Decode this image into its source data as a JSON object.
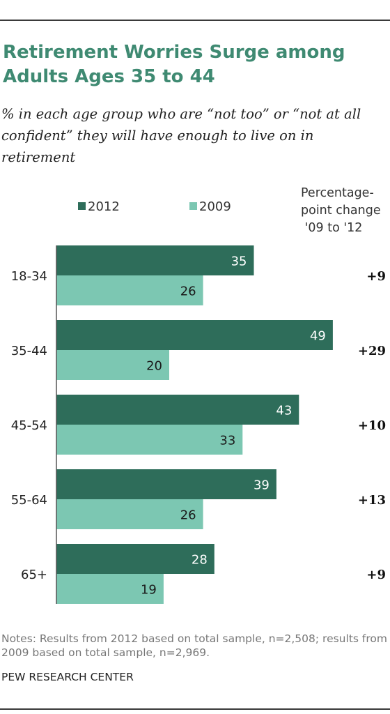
{
  "header": {
    "title": "Retirement Worries Surge among Adults Ages 35 to 44",
    "subtitle": "% in each age group  who are “not too” or “not at all confident” they will have enough to live on in retirement"
  },
  "legend": {
    "label_2012": "2012",
    "label_2009": "2009"
  },
  "change_header": "Percentage-\npoint change\n '09 to '12",
  "colors": {
    "bar_2012": "#2e6d5a",
    "bar_2009": "#7cc7b2",
    "title": "#3f8a72"
  },
  "chart_data": {
    "type": "bar",
    "orientation": "horizontal",
    "title": "Retirement Worries Surge among Adults Ages 35 to 44",
    "categories": [
      "18-34",
      "35-44",
      "45-54",
      "55-64",
      "65+"
    ],
    "series": [
      {
        "name": "2012",
        "values": [
          35,
          49,
          43,
          39,
          28
        ]
      },
      {
        "name": "2009",
        "values": [
          26,
          20,
          33,
          26,
          19
        ]
      }
    ],
    "changes": [
      "+9",
      "+29",
      "+10",
      "+13",
      "+9"
    ],
    "xlim": [
      0,
      100
    ],
    "grid": false,
    "legend": "top"
  },
  "footer": {
    "notes": "Notes: Results from 2012 based on total sample, n=2,508; results from 2009 based on total sample, n=2,969.",
    "source": "PEW RESEARCH CENTER"
  }
}
